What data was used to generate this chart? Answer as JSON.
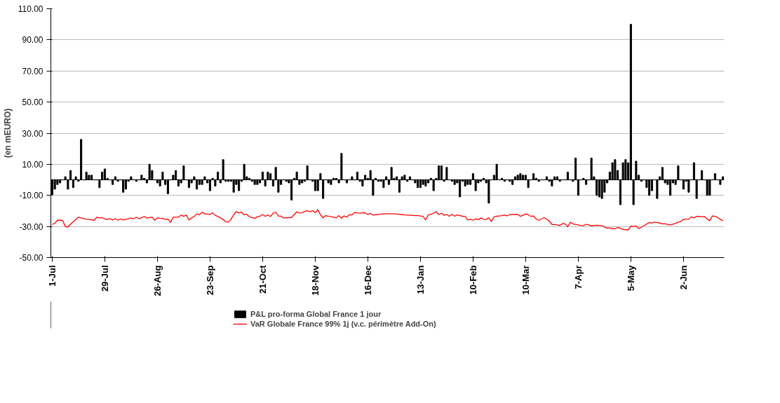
{
  "chart_data": {
    "type": "bar",
    "ylabel": "(en mEURO)",
    "categories": [
      "1-Jul",
      null,
      null,
      null,
      null,
      null,
      null,
      null,
      null,
      null,
      null,
      null,
      null,
      null,
      null,
      null,
      null,
      null,
      null,
      null,
      "29-Jul",
      null,
      null,
      null,
      null,
      null,
      null,
      null,
      null,
      null,
      null,
      null,
      null,
      null,
      null,
      null,
      null,
      null,
      null,
      null,
      "26-Aug",
      null,
      null,
      null,
      null,
      null,
      null,
      null,
      null,
      null,
      null,
      null,
      null,
      null,
      null,
      null,
      null,
      null,
      null,
      null,
      "23-Sep",
      null,
      null,
      null,
      null,
      null,
      null,
      null,
      null,
      null,
      null,
      null,
      null,
      null,
      null,
      null,
      null,
      null,
      null,
      null,
      "21-Oct",
      null,
      null,
      null,
      null,
      null,
      null,
      null,
      null,
      null,
      null,
      null,
      null,
      null,
      null,
      null,
      null,
      null,
      null,
      null,
      "18-Nov",
      null,
      null,
      null,
      null,
      null,
      null,
      null,
      null,
      null,
      null,
      null,
      null,
      null,
      null,
      null,
      null,
      null,
      null,
      null,
      "16-Dec",
      null,
      null,
      null,
      null,
      null,
      null,
      null,
      null,
      null,
      null,
      null,
      null,
      null,
      null,
      null,
      null,
      null,
      null,
      null,
      "13-Jan",
      null,
      null,
      null,
      null,
      null,
      null,
      null,
      null,
      null,
      null,
      null,
      null,
      null,
      null,
      null,
      null,
      null,
      null,
      null,
      "10-Feb",
      null,
      null,
      null,
      null,
      null,
      null,
      null,
      null,
      null,
      null,
      null,
      null,
      null,
      null,
      null,
      null,
      null,
      null,
      null,
      "10-Mar",
      null,
      null,
      null,
      null,
      null,
      null,
      null,
      null,
      null,
      null,
      null,
      null,
      null,
      null,
      null,
      null,
      null,
      null,
      null,
      "7-Apr",
      null,
      null,
      null,
      null,
      null,
      null,
      null,
      null,
      null,
      null,
      null,
      null,
      null,
      null,
      null,
      null,
      null,
      null,
      null,
      "5-May",
      null,
      null,
      null,
      null,
      null,
      null,
      null,
      null,
      null,
      null,
      null,
      null,
      null,
      null,
      null,
      null,
      null,
      null,
      null,
      "2-Jun",
      null,
      null,
      null,
      null,
      null,
      null,
      null,
      null,
      null,
      null,
      null,
      null,
      null,
      null,
      null
    ],
    "series": [
      {
        "name": "P&L pro-forma Global France 1 jour",
        "color": "#000000",
        "values": [
          -9.6,
          -6,
          -3,
          -2,
          0,
          2,
          -6,
          6,
          -5,
          2,
          -1,
          26,
          0,
          5,
          3,
          3,
          0,
          0,
          -5,
          5,
          7,
          1,
          0,
          -3,
          2,
          -1,
          0,
          -8,
          -6,
          -1,
          2,
          0,
          -1,
          0,
          3,
          1,
          -2,
          10,
          6,
          0,
          -2,
          -4,
          5,
          -3,
          -9,
          0,
          3,
          6,
          -4,
          -2,
          9,
          0,
          -5,
          -2,
          2,
          -6,
          -3,
          -3,
          2,
          -2,
          -7,
          1,
          -4,
          5,
          -2,
          13,
          -1,
          -1,
          -1,
          -8,
          -3,
          -7,
          -1,
          10,
          2,
          1,
          -1,
          -3,
          -3,
          -2,
          5,
          -4,
          5,
          4,
          -4,
          8,
          -8,
          -3,
          0,
          -1,
          -2,
          -13,
          1,
          5,
          -3,
          -2,
          -1,
          9,
          0,
          -1,
          -7,
          -7,
          4,
          -12,
          0,
          -2,
          -3,
          1,
          1,
          -2,
          17,
          0,
          -2,
          0,
          2,
          0,
          5,
          -1,
          -4,
          3,
          1,
          6,
          -10,
          1,
          -1,
          -1,
          -5,
          2,
          -3,
          8,
          1,
          2,
          -8,
          2,
          3,
          -1,
          2,
          0,
          -2,
          -5,
          -5,
          -3,
          -4,
          -2,
          1,
          -7,
          1,
          9,
          9,
          -1,
          8,
          0,
          -1,
          -3,
          -2,
          -11,
          -1,
          -4,
          -3,
          -3,
          4,
          -7,
          -2,
          -1,
          1,
          -2,
          -15,
          0,
          3,
          10,
          0,
          1,
          -1,
          0,
          -1,
          -3,
          2,
          3,
          4,
          3,
          3,
          -5,
          0,
          4,
          1,
          -1,
          0,
          0,
          2,
          -1,
          -4,
          2,
          2,
          -1,
          0,
          0,
          5,
          0,
          -1,
          14,
          -10,
          0,
          1,
          -3,
          0,
          14,
          2,
          -10,
          -11,
          -12,
          -8,
          -2,
          5,
          11,
          13,
          6,
          -16,
          11,
          13,
          11,
          100,
          -16,
          12,
          3,
          -1,
          0,
          -5,
          -10,
          -7,
          0,
          -12,
          2,
          8,
          -2,
          -3,
          -10,
          -2,
          -3,
          9,
          0,
          -6,
          -1,
          -8,
          0,
          11,
          -12,
          0,
          6,
          0,
          -10,
          -10,
          0,
          4,
          0,
          -3,
          2
        ]
      },
      {
        "name": "VaR Globale France 99% 1j (v.c. périmètre Add-On)",
        "type": "line",
        "color": "#ff0000",
        "values": [
          -28.7,
          -28,
          -26,
          -26,
          -26.2,
          -30,
          -30.4,
          -28.5,
          -27,
          -25.5,
          -24,
          -24.5,
          -25,
          -25.3,
          -25.5,
          -25.7,
          -26,
          -24,
          -24.5,
          -24.3,
          -25,
          -25.5,
          -25,
          -25.8,
          -25,
          -26,
          -25.2,
          -25.8,
          -25.4,
          -25,
          -24.6,
          -25,
          -24,
          -25,
          -24.4,
          -23.5,
          -24.6,
          -24.3,
          -24,
          -26,
          -24.5,
          -24.8,
          -24.8,
          -25.5,
          -25.3,
          -27.3,
          -24,
          -24,
          -24,
          -22.7,
          -23.5,
          -22.7,
          -25.8,
          -24.5,
          -23.5,
          -22,
          -22.5,
          -20.8,
          -22,
          -22,
          -22.3,
          -21.2,
          -22.8,
          -23.6,
          -24.5,
          -25.6,
          -27,
          -27.2,
          -25.4,
          -22.5,
          -20.4,
          -21.3,
          -20.8,
          -22.5,
          -22.2,
          -23.8,
          -24.3,
          -24.8,
          -23.8,
          -23.4,
          -22.3,
          -23.5,
          -22.6,
          -23.6,
          -21.5,
          -20.7,
          -23.2,
          -23.4,
          -24.6,
          -24.3,
          -24.4,
          -24.2,
          -22.4,
          -20.6,
          -21.3,
          -21.2,
          -20.3,
          -19.9,
          -20.5,
          -19.8,
          -21.2,
          -19.2,
          -22.5,
          -24.4,
          -23,
          -23.5,
          -23.7,
          -24,
          -24.5,
          -23,
          -24.8,
          -23.2,
          -24,
          -22.5,
          -22.6,
          -21,
          -21.3,
          -21.4,
          -21.2,
          -21.3,
          -22.3,
          -21.5,
          -22.7,
          -22.4,
          -22.3,
          -22,
          -22,
          -21.8,
          -21.8,
          -21.8,
          -21.9,
          -22,
          -22.2,
          -22.4,
          -22.6,
          -22.7,
          -22.8,
          -22.8,
          -23,
          -23,
          -23.2,
          -23.5,
          -25.8,
          -22.6,
          -22.2,
          -21.5,
          -20.5,
          -22.4,
          -21.5,
          -22.8,
          -22.3,
          -23.4,
          -22.2,
          -23.4,
          -22.6,
          -22.9,
          -23.5,
          -23.5,
          -25.8,
          -25.4,
          -26,
          -25.1,
          -25.6,
          -24.6,
          -25.4,
          -25.5,
          -24.5,
          -26.8,
          -23.8,
          -23.4,
          -23.2,
          -23,
          -22.7,
          -23.2,
          -22.3,
          -22.2,
          -22.4,
          -22.2,
          -23.5,
          -22.8,
          -22,
          -22.5,
          -23.5,
          -23.2,
          -25.2,
          -26,
          -25.2,
          -24.3,
          -25.3,
          -26.5,
          -28.7,
          -28.8,
          -29,
          -29.4,
          -28.2,
          -28.3,
          -30.2,
          -27.3,
          -28.4,
          -28.6,
          -29,
          -29.3,
          -29.4,
          -28.6,
          -29,
          -29.6,
          -29.3,
          -29.2,
          -29.3,
          -29.4,
          -30.3,
          -31,
          -31,
          -31.3,
          -31.5,
          -30.6,
          -31.2,
          -31.8,
          -32.1,
          -32.2,
          -29.8,
          -30,
          -29.7,
          -31.3,
          -30.5,
          -29.5,
          -28.5,
          -27.5,
          -27.8,
          -27.2,
          -27.5,
          -27.8,
          -28.3,
          -28.3,
          -28.7,
          -29,
          -28.5,
          -28,
          -27.3,
          -26.7,
          -25.5,
          -25.3,
          -25.3,
          -23.8,
          -24.5,
          -23.6,
          -23.5,
          -23.8,
          -23.6,
          -25.2,
          -26.3,
          -23.2,
          -23.5,
          -24.2,
          -25.4,
          -26.3
        ]
      }
    ],
    "ylim": [
      -50,
      110
    ],
    "yticks": [
      {
        "value": -50,
        "label": "-50.00"
      },
      {
        "value": -30,
        "label": "-30.00"
      },
      {
        "value": -10,
        "label": "-10.00"
      },
      {
        "value": 10,
        "label": "10.00"
      },
      {
        "value": 30,
        "label": "30.00"
      },
      {
        "value": 50,
        "label": "50.00"
      },
      {
        "value": 70,
        "label": "70.00"
      },
      {
        "value": 90,
        "label": "90.00"
      },
      {
        "value": 110,
        "label": "110.00"
      }
    ],
    "grid": "y",
    "legend": "bottom"
  }
}
